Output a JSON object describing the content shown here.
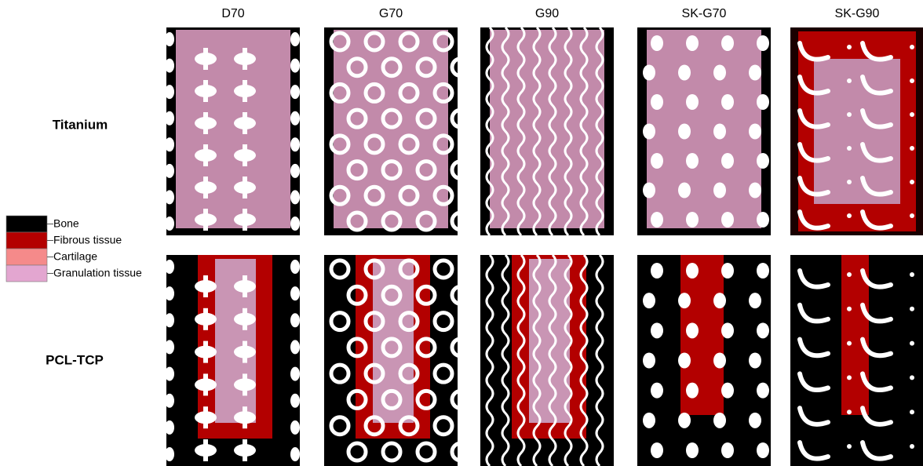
{
  "columns": [
    "D70",
    "G70",
    "G90",
    "SK-G70",
    "SK-G90"
  ],
  "rows": [
    "Titanium",
    "PCL-TCP"
  ],
  "legend": [
    {
      "label": "Bone",
      "color": "#000000"
    },
    {
      "label": "Fibrous tissue",
      "color": "#b30000"
    },
    {
      "label": "Cartilage",
      "color": "#f58a8a"
    },
    {
      "label": "Granulation tissue",
      "color": "#e3a6d0"
    }
  ]
}
